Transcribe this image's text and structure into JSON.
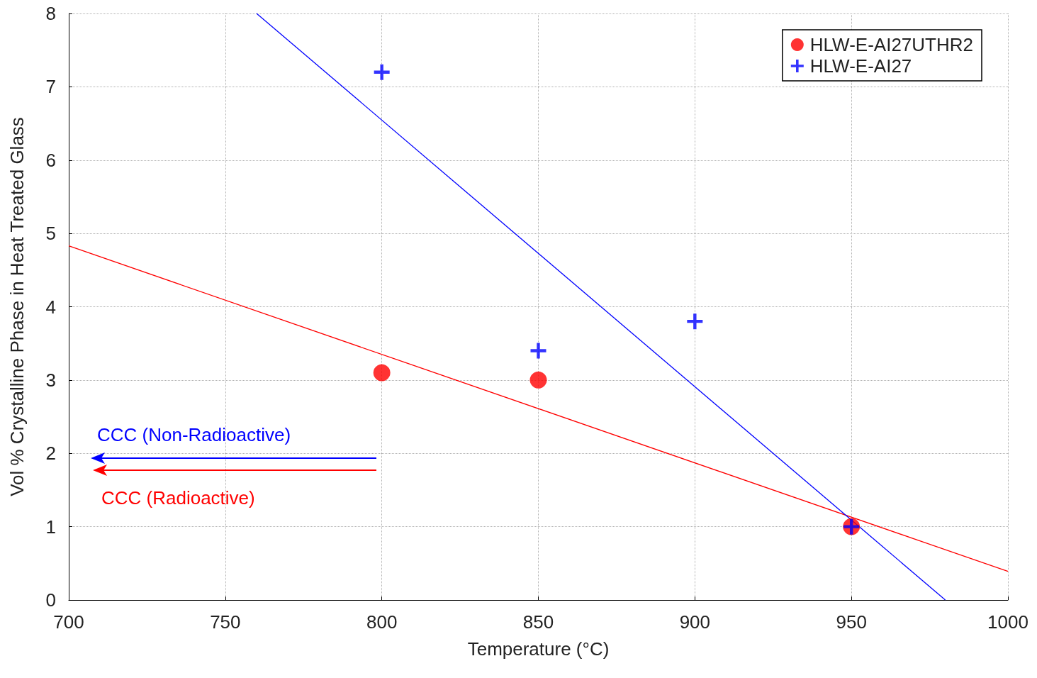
{
  "chart_data": {
    "type": "scatter",
    "xlabel": "Temperature (°C)",
    "ylabel": "Vol % Crystalline Phase in Heat Treated Glass",
    "xlim": [
      700,
      1000
    ],
    "xticks": [
      700,
      750,
      800,
      850,
      900,
      950,
      1000
    ],
    "ylim": [
      0,
      8
    ],
    "yticks": [
      0,
      1,
      2,
      3,
      4,
      5,
      6,
      7,
      8
    ],
    "grid": true,
    "legend": "top right",
    "series": [
      {
        "name": "HLW-E-AI27UTHR2",
        "marker": "circle",
        "color": "#ff0000",
        "x": [
          800,
          850,
          950
        ],
        "values": [
          3.1,
          3.0,
          1.0
        ]
      },
      {
        "name": "HLW-E-AI27",
        "marker": "cross",
        "color": "#0000ff",
        "x": [
          800,
          850,
          900,
          950
        ],
        "values": [
          7.2,
          3.4,
          3.8,
          1.0
        ]
      },
      {
        "type": "line",
        "marker": "none",
        "color": "#ff0000",
        "x": [
          700,
          1000
        ],
        "values": [
          4.83,
          0.39
        ]
      },
      {
        "type": "line",
        "marker": "none",
        "color": "#0000ff",
        "x": [
          760,
          980
        ],
        "values": [
          8,
          0
        ]
      }
    ],
    "annotations": [
      "CCC (Non-Radioactive)",
      "CCC (Radioactive)"
    ]
  }
}
